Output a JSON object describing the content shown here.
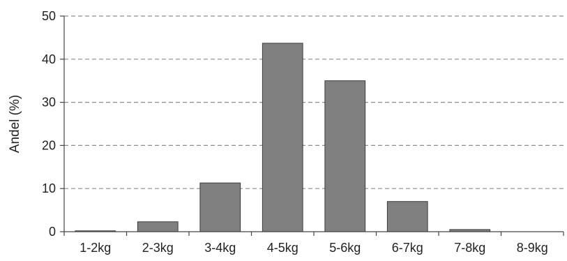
{
  "chart_data": {
    "type": "bar",
    "title": "",
    "xlabel": "",
    "ylabel": "Andel (%)",
    "categories": [
      "1-2kg",
      "2-3kg",
      "3-4kg",
      "4-5kg",
      "5-6kg",
      "6-7kg",
      "7-8kg",
      "8-9kg"
    ],
    "values": [
      0.2,
      2.3,
      11.3,
      43.7,
      35.0,
      7.0,
      0.5,
      0.0
    ],
    "ylim": [
      0,
      50
    ],
    "yticks": [
      0,
      10,
      20,
      30,
      40,
      50
    ],
    "grid": "horizontal-dashed",
    "legend": "none",
    "colors": {
      "bar_fill": "#808080",
      "bar_stroke": "#3a3a3a",
      "grid": "#8c8c8c",
      "axis": "#444444"
    }
  }
}
